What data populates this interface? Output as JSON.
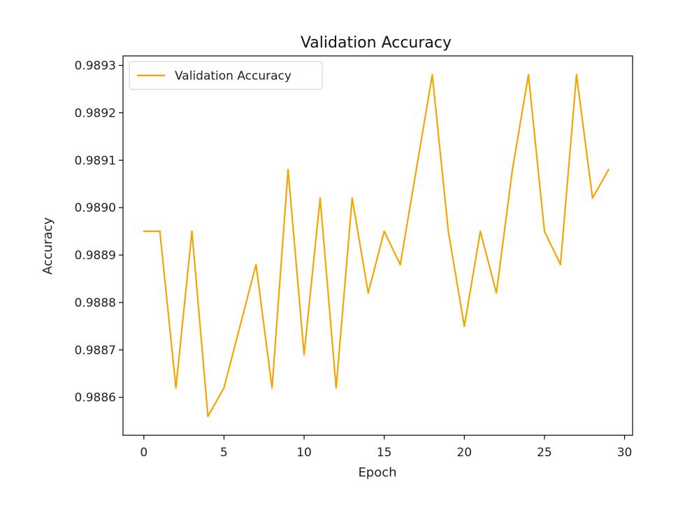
{
  "chart_data": {
    "type": "line",
    "title": "Validation Accuracy",
    "xlabel": "Epoch",
    "ylabel": "Accuracy",
    "xlim": [
      -1.3,
      30.5
    ],
    "ylim": [
      0.98852,
      0.98932
    ],
    "x_ticks": [
      0,
      5,
      10,
      15,
      20,
      25,
      30
    ],
    "y_ticks": [
      0.9886,
      0.9887,
      0.9888,
      0.9889,
      0.989,
      0.9891,
      0.9892,
      0.9893
    ],
    "grid": false,
    "legend_position": "upper-left",
    "series": [
      {
        "name": "Validation Accuracy",
        "color": "#f5a500",
        "x": [
          0,
          1,
          2,
          3,
          4,
          5,
          6,
          7,
          8,
          9,
          10,
          11,
          12,
          13,
          14,
          15,
          16,
          17,
          18,
          19,
          20,
          21,
          22,
          23,
          24,
          25,
          26,
          27,
          28,
          29
        ],
        "values": [
          0.98895,
          0.98895,
          0.98862,
          0.98895,
          0.98856,
          0.98862,
          0.98875,
          0.98888,
          0.98862,
          0.98908,
          0.98869,
          0.98902,
          0.98862,
          0.98902,
          0.98882,
          0.98895,
          0.98888,
          0.98908,
          0.98928,
          0.98895,
          0.98875,
          0.98895,
          0.98882,
          0.98908,
          0.98928,
          0.98895,
          0.98888,
          0.98928,
          0.98902,
          0.98908
        ]
      }
    ]
  }
}
